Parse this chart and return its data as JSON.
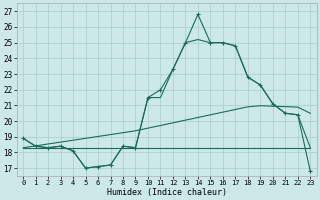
{
  "title": "",
  "xlabel": "Humidex (Indice chaleur)",
  "xlim": [
    -0.5,
    23.5
  ],
  "ylim": [
    16.5,
    27.5
  ],
  "yticks": [
    17,
    18,
    19,
    20,
    21,
    22,
    23,
    24,
    25,
    26,
    27
  ],
  "xticks": [
    0,
    1,
    2,
    3,
    4,
    5,
    6,
    7,
    8,
    9,
    10,
    11,
    12,
    13,
    14,
    15,
    16,
    17,
    18,
    19,
    20,
    21,
    22,
    23
  ],
  "bg_color": "#cce8e8",
  "grid_color": "#aacccc",
  "line_color": "#1a6b5a",
  "series_main": [
    18.9,
    18.4,
    18.3,
    18.4,
    18.1,
    17.0,
    17.1,
    17.2,
    18.4,
    18.3,
    21.5,
    22.0,
    23.3,
    25.0,
    26.8,
    25.0,
    25.0,
    24.8,
    22.8,
    22.3,
    21.1,
    20.5,
    20.4,
    16.8
  ],
  "series_line2": [
    18.9,
    18.4,
    18.3,
    18.4,
    18.1,
    17.0,
    17.1,
    17.2,
    18.4,
    18.3,
    21.5,
    21.5,
    23.3,
    25.0,
    25.2,
    25.0,
    25.0,
    24.8,
    22.8,
    22.3,
    21.1,
    20.5,
    20.4,
    18.3
  ],
  "series_flat": [
    18.3,
    18.3,
    18.3,
    18.3,
    18.3,
    18.3,
    18.3,
    18.3,
    18.3,
    18.3,
    18.3,
    18.3,
    18.3,
    18.3,
    18.3,
    18.3,
    18.3,
    18.3,
    18.3,
    18.3,
    18.3,
    18.3,
    18.3,
    18.3
  ],
  "series_linear": [
    18.3,
    18.42,
    18.54,
    18.66,
    18.78,
    18.9,
    19.02,
    19.14,
    19.26,
    19.38,
    19.55,
    19.72,
    19.89,
    20.06,
    20.23,
    20.4,
    20.57,
    20.74,
    20.91,
    20.98,
    20.95,
    20.92,
    20.89,
    20.5
  ]
}
